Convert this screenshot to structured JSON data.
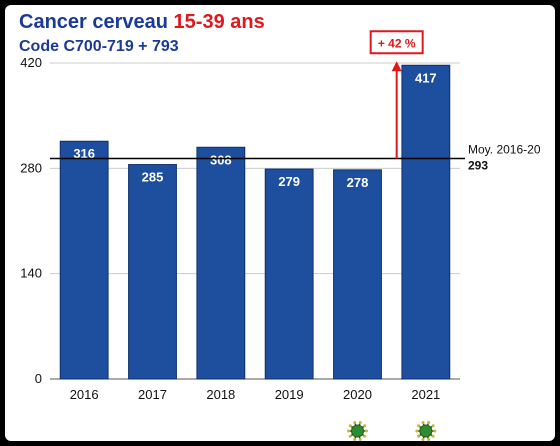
{
  "title": {
    "prefix": "Cancer cerveau",
    "highlight": "15-39 ans"
  },
  "subtitle": "Code C700-719 + 793",
  "chart_data": {
    "type": "bar",
    "categories": [
      "2016",
      "2017",
      "2018",
      "2019",
      "2020",
      "2021"
    ],
    "values": [
      316,
      285,
      308,
      279,
      278,
      417
    ],
    "value_labels": [
      "316",
      "285",
      "308",
      "279",
      "278",
      "417"
    ],
    "ylim": [
      0,
      420
    ],
    "yticks": [
      0,
      140,
      280,
      420
    ],
    "grid": true,
    "reference_line": {
      "label": "Moy. 2016-20",
      "value_text": "293",
      "value": 293
    },
    "annotation": {
      "text": "+ 42 %",
      "from": 293,
      "to": 417,
      "category": "2021"
    },
    "markers": {
      "categories": [
        "2020",
        "2021"
      ],
      "icon": "virus-icon",
      "color": "#2e8b2e"
    },
    "colors": {
      "bar": "#1d4f9e",
      "bar_edge": "#0d2f6e",
      "title": "#1a3a9a",
      "highlight": "#e0171b",
      "grid": "#cccccc"
    }
  }
}
